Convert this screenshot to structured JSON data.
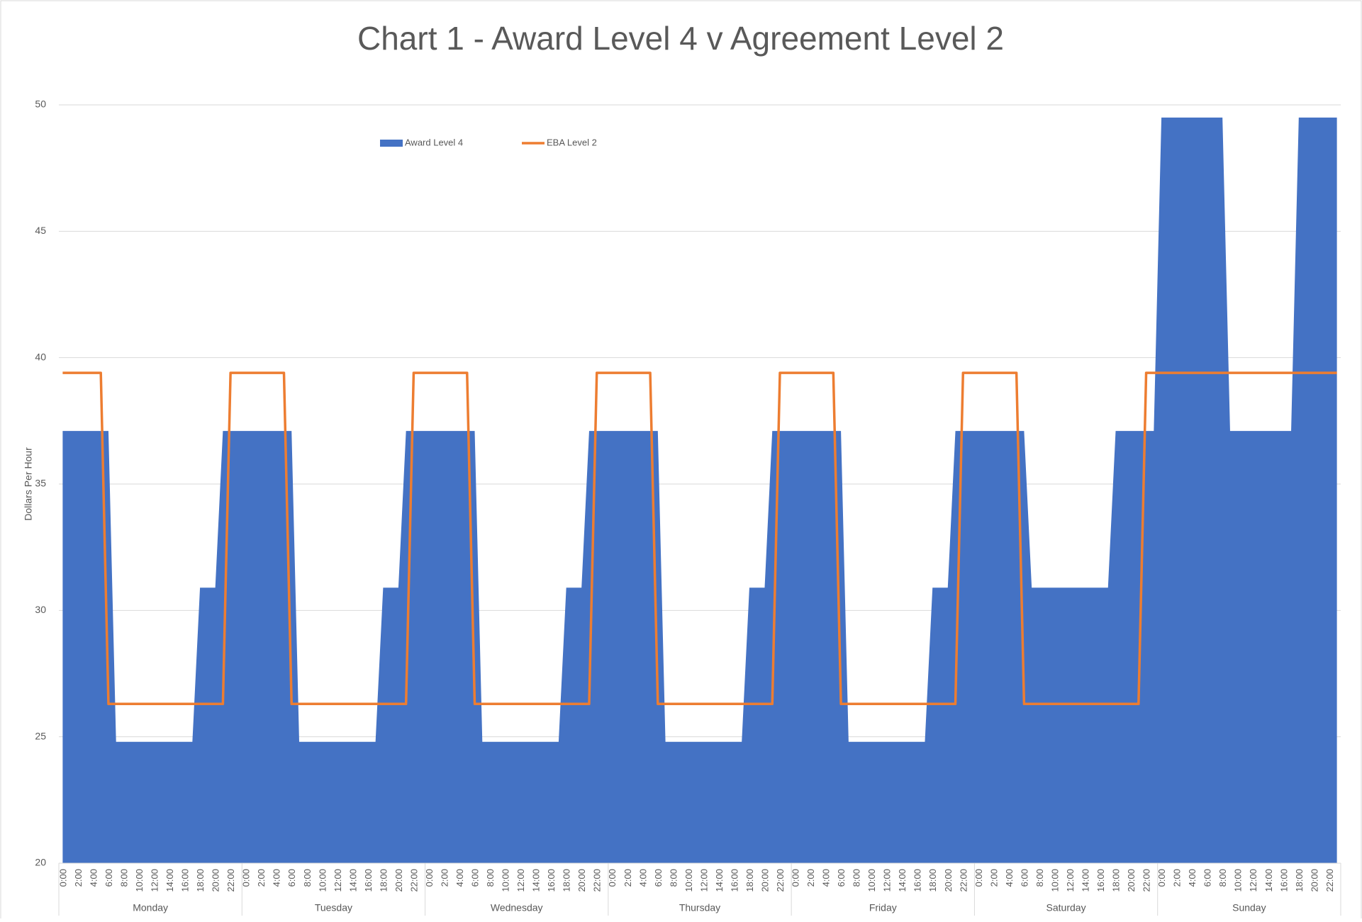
{
  "chart_data": {
    "type": "area-line",
    "title": "Chart 1 - Award Level 4 v Agreement Level 2",
    "y_label": "Dollars Per Hour",
    "ylim": [
      20,
      50
    ],
    "yticks": [
      20,
      25,
      30,
      35,
      40,
      45,
      50
    ],
    "grid": true,
    "legend": "top-left",
    "category_groups": [
      "Monday",
      "Tuesday",
      "Wednesday",
      "Thursday",
      "Friday",
      "Saturday",
      "Sunday"
    ],
    "categories": [
      "0:00",
      null,
      "2:00",
      null,
      "4:00",
      null,
      "6:00",
      null,
      "8:00",
      null,
      "10:00",
      null,
      "12:00",
      null,
      "14:00",
      null,
      "16:00",
      null,
      "18:00",
      null,
      "20:00",
      null,
      "22:00",
      null,
      "0:00",
      null,
      "2:00",
      null,
      "4:00",
      null,
      "6:00",
      null,
      "8:00",
      null,
      "10:00",
      null,
      "12:00",
      null,
      "14:00",
      null,
      "16:00",
      null,
      "18:00",
      null,
      "20:00",
      null,
      "22:00",
      null,
      "0:00",
      null,
      "2:00",
      null,
      "4:00",
      null,
      "6:00",
      null,
      "8:00",
      null,
      "10:00",
      null,
      "12:00",
      null,
      "14:00",
      null,
      "16:00",
      null,
      "18:00",
      null,
      "20:00",
      null,
      "22:00",
      null,
      "0:00",
      null,
      "2:00",
      null,
      "4:00",
      null,
      "6:00",
      null,
      "8:00",
      null,
      "10:00",
      null,
      "12:00",
      null,
      "14:00",
      null,
      "16:00",
      null,
      "18:00",
      null,
      "20:00",
      null,
      "22:00",
      null,
      "0:00",
      null,
      "2:00",
      null,
      "4:00",
      null,
      "6:00",
      null,
      "8:00",
      null,
      "10:00",
      null,
      "12:00",
      null,
      "14:00",
      null,
      "16:00",
      null,
      "18:00",
      null,
      "20:00",
      null,
      "22:00",
      null,
      "0:00",
      null,
      "2:00",
      null,
      "4:00",
      null,
      "6:00",
      null,
      "8:00",
      null,
      "10:00",
      null,
      "12:00",
      null,
      "14:00",
      null,
      "16:00",
      null,
      "18:00",
      null,
      "20:00",
      null,
      "22:00",
      null,
      "0:00",
      null,
      "2:00",
      null,
      "4:00",
      null,
      "6:00",
      null,
      "8:00",
      null,
      "10:00",
      null,
      "12:00",
      null,
      "14:00",
      null,
      "16:00",
      null,
      "18:00",
      null,
      "20:00",
      null,
      "22:00",
      null
    ],
    "series": [
      {
        "name": "Award Level 4",
        "kind": "area",
        "color": "#4472c4",
        "values": [
          37.1,
          37.1,
          37.1,
          37.1,
          37.1,
          37.1,
          37.1,
          24.8,
          24.8,
          24.8,
          24.8,
          24.8,
          24.8,
          24.8,
          24.8,
          24.8,
          24.8,
          24.8,
          30.9,
          30.9,
          30.9,
          37.1,
          37.1,
          37.1,
          37.1,
          37.1,
          37.1,
          37.1,
          37.1,
          37.1,
          37.1,
          24.8,
          24.8,
          24.8,
          24.8,
          24.8,
          24.8,
          24.8,
          24.8,
          24.8,
          24.8,
          24.8,
          30.9,
          30.9,
          30.9,
          37.1,
          37.1,
          37.1,
          37.1,
          37.1,
          37.1,
          37.1,
          37.1,
          37.1,
          37.1,
          24.8,
          24.8,
          24.8,
          24.8,
          24.8,
          24.8,
          24.8,
          24.8,
          24.8,
          24.8,
          24.8,
          30.9,
          30.9,
          30.9,
          37.1,
          37.1,
          37.1,
          37.1,
          37.1,
          37.1,
          37.1,
          37.1,
          37.1,
          37.1,
          24.8,
          24.8,
          24.8,
          24.8,
          24.8,
          24.8,
          24.8,
          24.8,
          24.8,
          24.8,
          24.8,
          30.9,
          30.9,
          30.9,
          37.1,
          37.1,
          37.1,
          37.1,
          37.1,
          37.1,
          37.1,
          37.1,
          37.1,
          37.1,
          24.8,
          24.8,
          24.8,
          24.8,
          24.8,
          24.8,
          24.8,
          24.8,
          24.8,
          24.8,
          24.8,
          30.9,
          30.9,
          30.9,
          37.1,
          37.1,
          37.1,
          37.1,
          37.1,
          37.1,
          37.1,
          37.1,
          37.1,
          37.1,
          30.9,
          30.9,
          30.9,
          30.9,
          30.9,
          30.9,
          30.9,
          30.9,
          30.9,
          30.9,
          30.9,
          37.1,
          37.1,
          37.1,
          37.1,
          37.1,
          37.1,
          49.5,
          49.5,
          49.5,
          49.5,
          49.5,
          49.5,
          49.5,
          49.5,
          49.5,
          37.1,
          37.1,
          37.1,
          37.1,
          37.1,
          37.1,
          37.1,
          37.1,
          37.1,
          49.5,
          49.5,
          49.5,
          49.5,
          49.5,
          49.5
        ]
      },
      {
        "name": "EBA Level 2",
        "kind": "line",
        "color": "#ed7d31",
        "values": [
          39.4,
          39.4,
          39.4,
          39.4,
          39.4,
          39.4,
          26.3,
          26.3,
          26.3,
          26.3,
          26.3,
          26.3,
          26.3,
          26.3,
          26.3,
          26.3,
          26.3,
          26.3,
          26.3,
          26.3,
          26.3,
          26.3,
          39.4,
          39.4,
          39.4,
          39.4,
          39.4,
          39.4,
          39.4,
          39.4,
          26.3,
          26.3,
          26.3,
          26.3,
          26.3,
          26.3,
          26.3,
          26.3,
          26.3,
          26.3,
          26.3,
          26.3,
          26.3,
          26.3,
          26.3,
          26.3,
          39.4,
          39.4,
          39.4,
          39.4,
          39.4,
          39.4,
          39.4,
          39.4,
          26.3,
          26.3,
          26.3,
          26.3,
          26.3,
          26.3,
          26.3,
          26.3,
          26.3,
          26.3,
          26.3,
          26.3,
          26.3,
          26.3,
          26.3,
          26.3,
          39.4,
          39.4,
          39.4,
          39.4,
          39.4,
          39.4,
          39.4,
          39.4,
          26.3,
          26.3,
          26.3,
          26.3,
          26.3,
          26.3,
          26.3,
          26.3,
          26.3,
          26.3,
          26.3,
          26.3,
          26.3,
          26.3,
          26.3,
          26.3,
          39.4,
          39.4,
          39.4,
          39.4,
          39.4,
          39.4,
          39.4,
          39.4,
          26.3,
          26.3,
          26.3,
          26.3,
          26.3,
          26.3,
          26.3,
          26.3,
          26.3,
          26.3,
          26.3,
          26.3,
          26.3,
          26.3,
          26.3,
          26.3,
          39.4,
          39.4,
          39.4,
          39.4,
          39.4,
          39.4,
          39.4,
          39.4,
          26.3,
          26.3,
          26.3,
          26.3,
          26.3,
          26.3,
          26.3,
          26.3,
          26.3,
          26.3,
          26.3,
          26.3,
          26.3,
          26.3,
          26.3,
          26.3,
          39.4,
          39.4,
          39.4,
          39.4,
          39.4,
          39.4,
          39.4,
          39.4,
          39.4,
          39.4,
          39.4,
          39.4,
          39.4,
          39.4,
          39.4,
          39.4,
          39.4,
          39.4,
          39.4,
          39.4,
          39.4,
          39.4,
          39.4,
          39.4,
          39.4,
          39.4
        ]
      }
    ]
  }
}
